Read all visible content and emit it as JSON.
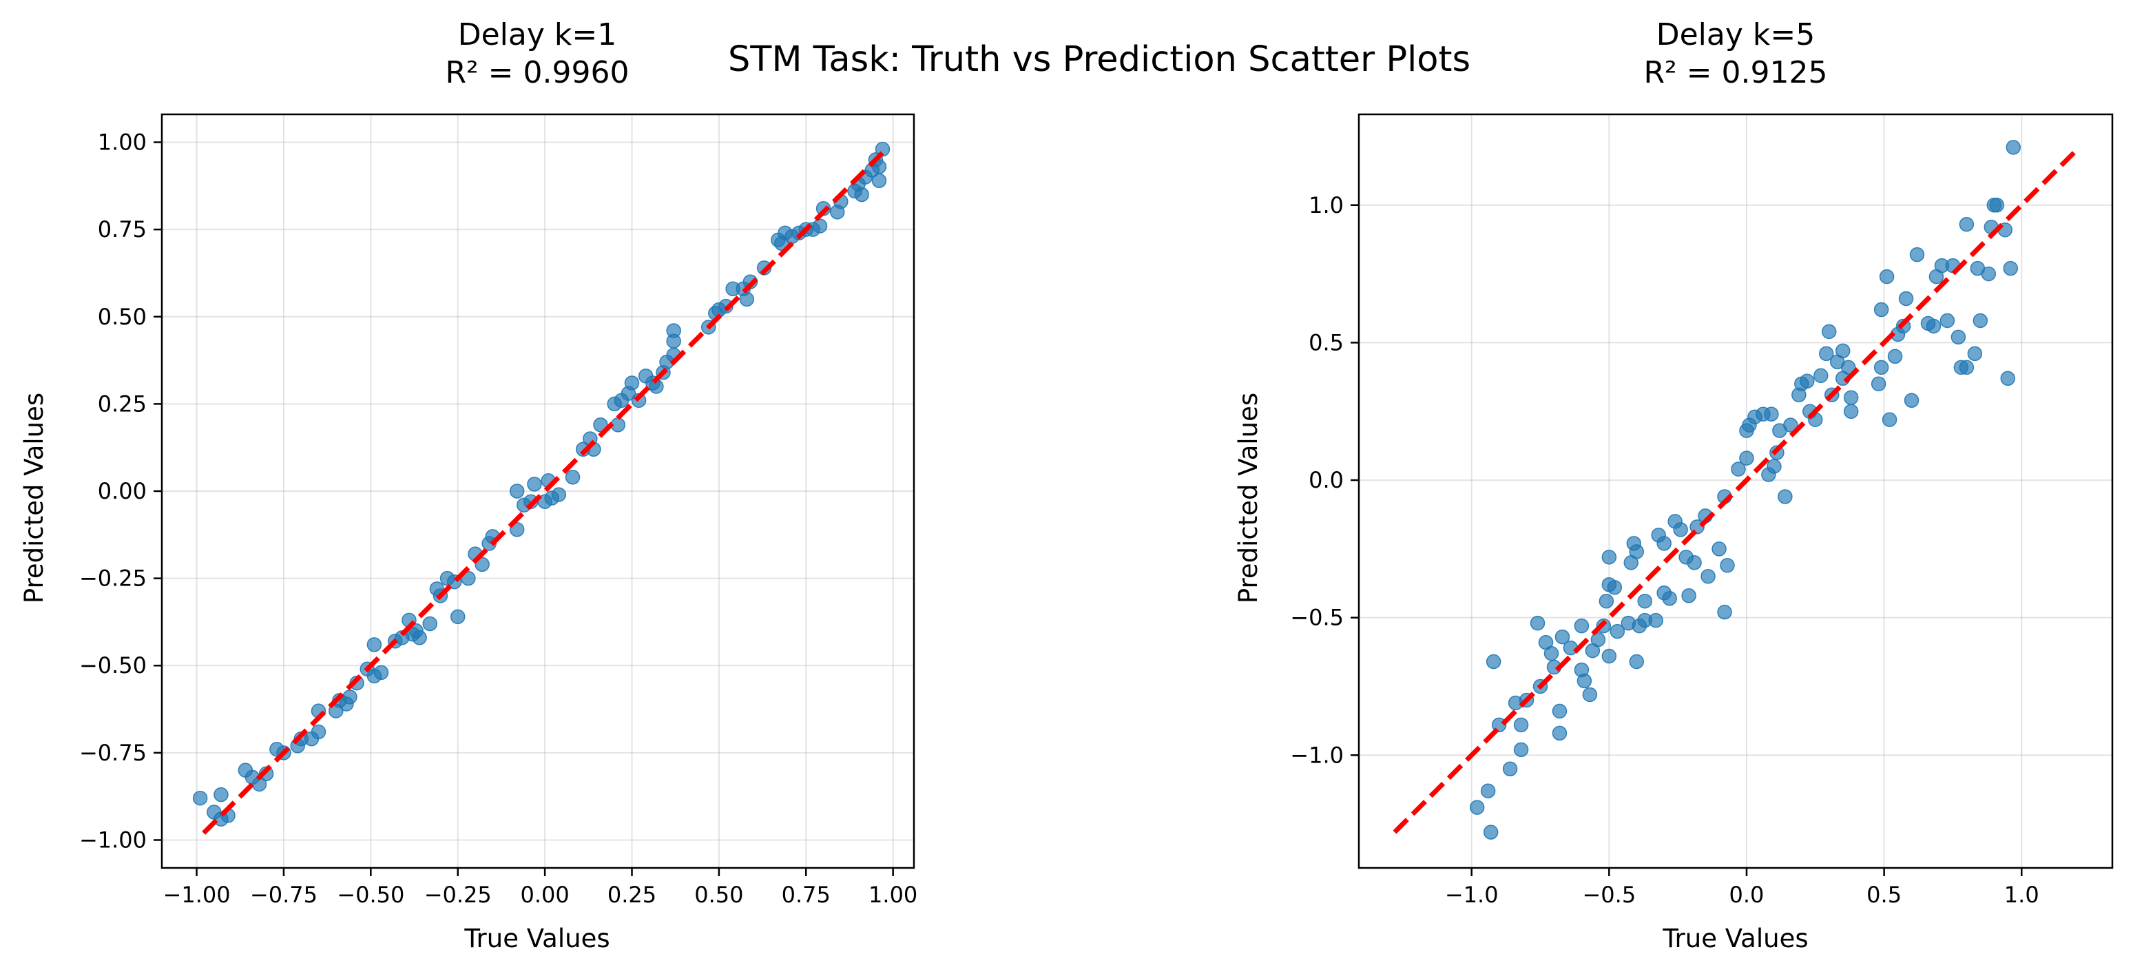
{
  "suptitle": "STM Task: Truth vs Prediction Scatter Plots",
  "colors": {
    "points": "#1f77b4",
    "reference": "#ff0000",
    "grid": "#b0b0b0"
  },
  "chart_data": [
    {
      "type": "scatter",
      "title_line1": "Delay k=1",
      "title_line2": "R² = 0.9960",
      "xlabel": "True Values",
      "ylabel": "Predicted Values",
      "xlim": [
        -1.1,
        1.06
      ],
      "ylim": [
        -1.08,
        1.08
      ],
      "xticks": [
        -1.0,
        -0.75,
        -0.5,
        -0.25,
        0.0,
        0.25,
        0.5,
        0.75,
        1.0
      ],
      "xtick_labels": [
        "−1.00",
        "−0.75",
        "−0.50",
        "−0.25",
        "0.00",
        "0.25",
        "0.50",
        "0.75",
        "1.00"
      ],
      "yticks": [
        -1.0,
        -0.75,
        -0.5,
        -0.25,
        0.0,
        0.25,
        0.5,
        0.75,
        1.0
      ],
      "ytick_labels": [
        "−1.00",
        "−0.75",
        "−0.50",
        "−0.25",
        "0.00",
        "0.25",
        "0.50",
        "0.75",
        "1.00"
      ],
      "grid": true,
      "reference_line": {
        "x": [
          -0.98,
          0.97
        ],
        "y": [
          -0.98,
          0.97
        ]
      },
      "points": [
        [
          -0.99,
          -0.88
        ],
        [
          -0.95,
          -0.92
        ],
        [
          -0.93,
          -0.87
        ],
        [
          -0.93,
          -0.94
        ],
        [
          -0.91,
          -0.93
        ],
        [
          -0.86,
          -0.8
        ],
        [
          -0.84,
          -0.82
        ],
        [
          -0.82,
          -0.84
        ],
        [
          -0.8,
          -0.81
        ],
        [
          -0.77,
          -0.74
        ],
        [
          -0.75,
          -0.75
        ],
        [
          -0.71,
          -0.73
        ],
        [
          -0.7,
          -0.71
        ],
        [
          -0.67,
          -0.71
        ],
        [
          -0.65,
          -0.63
        ],
        [
          -0.65,
          -0.69
        ],
        [
          -0.6,
          -0.63
        ],
        [
          -0.59,
          -0.6
        ],
        [
          -0.57,
          -0.61
        ],
        [
          -0.56,
          -0.59
        ],
        [
          -0.54,
          -0.55
        ],
        [
          -0.51,
          -0.51
        ],
        [
          -0.49,
          -0.44
        ],
        [
          -0.49,
          -0.53
        ],
        [
          -0.47,
          -0.52
        ],
        [
          -0.43,
          -0.43
        ],
        [
          -0.41,
          -0.42
        ],
        [
          -0.39,
          -0.37
        ],
        [
          -0.38,
          -0.41
        ],
        [
          -0.37,
          -0.4
        ],
        [
          -0.36,
          -0.42
        ],
        [
          -0.33,
          -0.38
        ],
        [
          -0.31,
          -0.28
        ],
        [
          -0.3,
          -0.3
        ],
        [
          -0.28,
          -0.25
        ],
        [
          -0.26,
          -0.26
        ],
        [
          -0.25,
          -0.36
        ],
        [
          -0.22,
          -0.25
        ],
        [
          -0.2,
          -0.18
        ],
        [
          -0.18,
          -0.21
        ],
        [
          -0.16,
          -0.15
        ],
        [
          -0.15,
          -0.13
        ],
        [
          -0.08,
          -0.11
        ],
        [
          -0.08,
          0.0
        ],
        [
          -0.06,
          -0.04
        ],
        [
          -0.04,
          -0.03
        ],
        [
          -0.03,
          0.02
        ],
        [
          0.0,
          -0.03
        ],
        [
          0.01,
          0.03
        ],
        [
          0.02,
          -0.02
        ],
        [
          0.04,
          -0.01
        ],
        [
          0.08,
          0.04
        ],
        [
          0.11,
          0.12
        ],
        [
          0.13,
          0.15
        ],
        [
          0.14,
          0.12
        ],
        [
          0.16,
          0.19
        ],
        [
          0.2,
          0.25
        ],
        [
          0.21,
          0.19
        ],
        [
          0.22,
          0.26
        ],
        [
          0.24,
          0.28
        ],
        [
          0.25,
          0.31
        ],
        [
          0.27,
          0.26
        ],
        [
          0.29,
          0.33
        ],
        [
          0.31,
          0.31
        ],
        [
          0.32,
          0.3
        ],
        [
          0.34,
          0.34
        ],
        [
          0.35,
          0.37
        ],
        [
          0.37,
          0.43
        ],
        [
          0.37,
          0.46
        ],
        [
          0.37,
          0.39
        ],
        [
          0.47,
          0.47
        ],
        [
          0.49,
          0.51
        ],
        [
          0.5,
          0.52
        ],
        [
          0.52,
          0.53
        ],
        [
          0.54,
          0.58
        ],
        [
          0.57,
          0.58
        ],
        [
          0.58,
          0.55
        ],
        [
          0.59,
          0.6
        ],
        [
          0.63,
          0.64
        ],
        [
          0.67,
          0.72
        ],
        [
          0.68,
          0.71
        ],
        [
          0.69,
          0.74
        ],
        [
          0.71,
          0.73
        ],
        [
          0.73,
          0.74
        ],
        [
          0.75,
          0.75
        ],
        [
          0.77,
          0.75
        ],
        [
          0.79,
          0.76
        ],
        [
          0.8,
          0.81
        ],
        [
          0.84,
          0.8
        ],
        [
          0.85,
          0.83
        ],
        [
          0.89,
          0.86
        ],
        [
          0.9,
          0.88
        ],
        [
          0.91,
          0.85
        ],
        [
          0.92,
          0.9
        ],
        [
          0.94,
          0.92
        ],
        [
          0.95,
          0.95
        ],
        [
          0.96,
          0.93
        ],
        [
          0.96,
          0.89
        ],
        [
          0.97,
          0.98
        ]
      ]
    },
    {
      "type": "scatter",
      "title_line1": "Delay k=5",
      "title_line2": "R² = 0.9125",
      "xlabel": "True Values",
      "ylabel": "Predicted Values",
      "xlim": [
        -1.41,
        1.33
      ],
      "ylim": [
        -1.41,
        1.33
      ],
      "xticks": [
        -1.0,
        -0.5,
        0.0,
        0.5,
        1.0
      ],
      "xtick_labels": [
        "−1.0",
        "−0.5",
        "0.0",
        "0.5",
        "1.0"
      ],
      "yticks": [
        -1.0,
        -0.5,
        0.0,
        0.5,
        1.0
      ],
      "ytick_labels": [
        "−1.0",
        "−0.5",
        "0.0",
        "0.5",
        "1.0"
      ],
      "grid": true,
      "reference_line": {
        "x": [
          -1.28,
          1.2
        ],
        "y": [
          -1.28,
          1.2
        ]
      },
      "points": [
        [
          -0.98,
          -1.19
        ],
        [
          -0.94,
          -1.13
        ],
        [
          -0.93,
          -1.28
        ],
        [
          -0.92,
          -0.66
        ],
        [
          -0.9,
          -0.89
        ],
        [
          -0.86,
          -1.05
        ],
        [
          -0.84,
          -0.81
        ],
        [
          -0.82,
          -0.98
        ],
        [
          -0.82,
          -0.89
        ],
        [
          -0.8,
          -0.8
        ],
        [
          -0.76,
          -0.52
        ],
        [
          -0.75,
          -0.75
        ],
        [
          -0.73,
          -0.59
        ],
        [
          -0.71,
          -0.63
        ],
        [
          -0.7,
          -0.68
        ],
        [
          -0.68,
          -0.84
        ],
        [
          -0.68,
          -0.92
        ],
        [
          -0.67,
          -0.57
        ],
        [
          -0.64,
          -0.61
        ],
        [
          -0.6,
          -0.53
        ],
        [
          -0.6,
          -0.69
        ],
        [
          -0.59,
          -0.73
        ],
        [
          -0.57,
          -0.78
        ],
        [
          -0.56,
          -0.62
        ],
        [
          -0.54,
          -0.58
        ],
        [
          -0.52,
          -0.53
        ],
        [
          -0.51,
          -0.44
        ],
        [
          -0.5,
          -0.28
        ],
        [
          -0.5,
          -0.38
        ],
        [
          -0.5,
          -0.64
        ],
        [
          -0.48,
          -0.39
        ],
        [
          -0.47,
          -0.55
        ],
        [
          -0.43,
          -0.52
        ],
        [
          -0.42,
          -0.3
        ],
        [
          -0.41,
          -0.23
        ],
        [
          -0.4,
          -0.26
        ],
        [
          -0.4,
          -0.66
        ],
        [
          -0.39,
          -0.53
        ],
        [
          -0.37,
          -0.44
        ],
        [
          -0.37,
          -0.51
        ],
        [
          -0.33,
          -0.51
        ],
        [
          -0.32,
          -0.2
        ],
        [
          -0.3,
          -0.23
        ],
        [
          -0.3,
          -0.41
        ],
        [
          -0.28,
          -0.43
        ],
        [
          -0.26,
          -0.15
        ],
        [
          -0.24,
          -0.18
        ],
        [
          -0.22,
          -0.28
        ],
        [
          -0.21,
          -0.42
        ],
        [
          -0.19,
          -0.3
        ],
        [
          -0.18,
          -0.17
        ],
        [
          -0.15,
          -0.13
        ],
        [
          -0.14,
          -0.35
        ],
        [
          -0.1,
          -0.25
        ],
        [
          -0.08,
          -0.48
        ],
        [
          -0.08,
          -0.06
        ],
        [
          -0.07,
          -0.31
        ],
        [
          -0.03,
          0.04
        ],
        [
          0.0,
          0.08
        ],
        [
          0.0,
          0.18
        ],
        [
          0.01,
          0.2
        ],
        [
          0.03,
          0.23
        ],
        [
          0.06,
          0.24
        ],
        [
          0.08,
          0.02
        ],
        [
          0.09,
          0.24
        ],
        [
          0.1,
          0.05
        ],
        [
          0.11,
          0.1
        ],
        [
          0.12,
          0.18
        ],
        [
          0.14,
          -0.06
        ],
        [
          0.16,
          0.2
        ],
        [
          0.19,
          0.31
        ],
        [
          0.2,
          0.35
        ],
        [
          0.22,
          0.36
        ],
        [
          0.23,
          0.25
        ],
        [
          0.25,
          0.22
        ],
        [
          0.27,
          0.38
        ],
        [
          0.29,
          0.46
        ],
        [
          0.3,
          0.54
        ],
        [
          0.31,
          0.31
        ],
        [
          0.33,
          0.43
        ],
        [
          0.35,
          0.47
        ],
        [
          0.35,
          0.37
        ],
        [
          0.37,
          0.41
        ],
        [
          0.38,
          0.3
        ],
        [
          0.38,
          0.25
        ],
        [
          0.48,
          0.35
        ],
        [
          0.49,
          0.62
        ],
        [
          0.49,
          0.41
        ],
        [
          0.51,
          0.74
        ],
        [
          0.52,
          0.22
        ],
        [
          0.54,
          0.45
        ],
        [
          0.55,
          0.53
        ],
        [
          0.57,
          0.56
        ],
        [
          0.58,
          0.66
        ],
        [
          0.6,
          0.29
        ],
        [
          0.62,
          0.82
        ],
        [
          0.66,
          0.57
        ],
        [
          0.68,
          0.56
        ],
        [
          0.69,
          0.74
        ],
        [
          0.71,
          0.78
        ],
        [
          0.73,
          0.58
        ],
        [
          0.75,
          0.78
        ],
        [
          0.77,
          0.52
        ],
        [
          0.78,
          0.41
        ],
        [
          0.8,
          0.41
        ],
        [
          0.8,
          0.93
        ],
        [
          0.83,
          0.46
        ],
        [
          0.84,
          0.77
        ],
        [
          0.85,
          0.58
        ],
        [
          0.88,
          0.75
        ],
        [
          0.89,
          0.92
        ],
        [
          0.9,
          1.0
        ],
        [
          0.91,
          1.0
        ],
        [
          0.94,
          0.91
        ],
        [
          0.95,
          0.37
        ],
        [
          0.96,
          0.77
        ],
        [
          0.97,
          1.21
        ]
      ]
    }
  ]
}
